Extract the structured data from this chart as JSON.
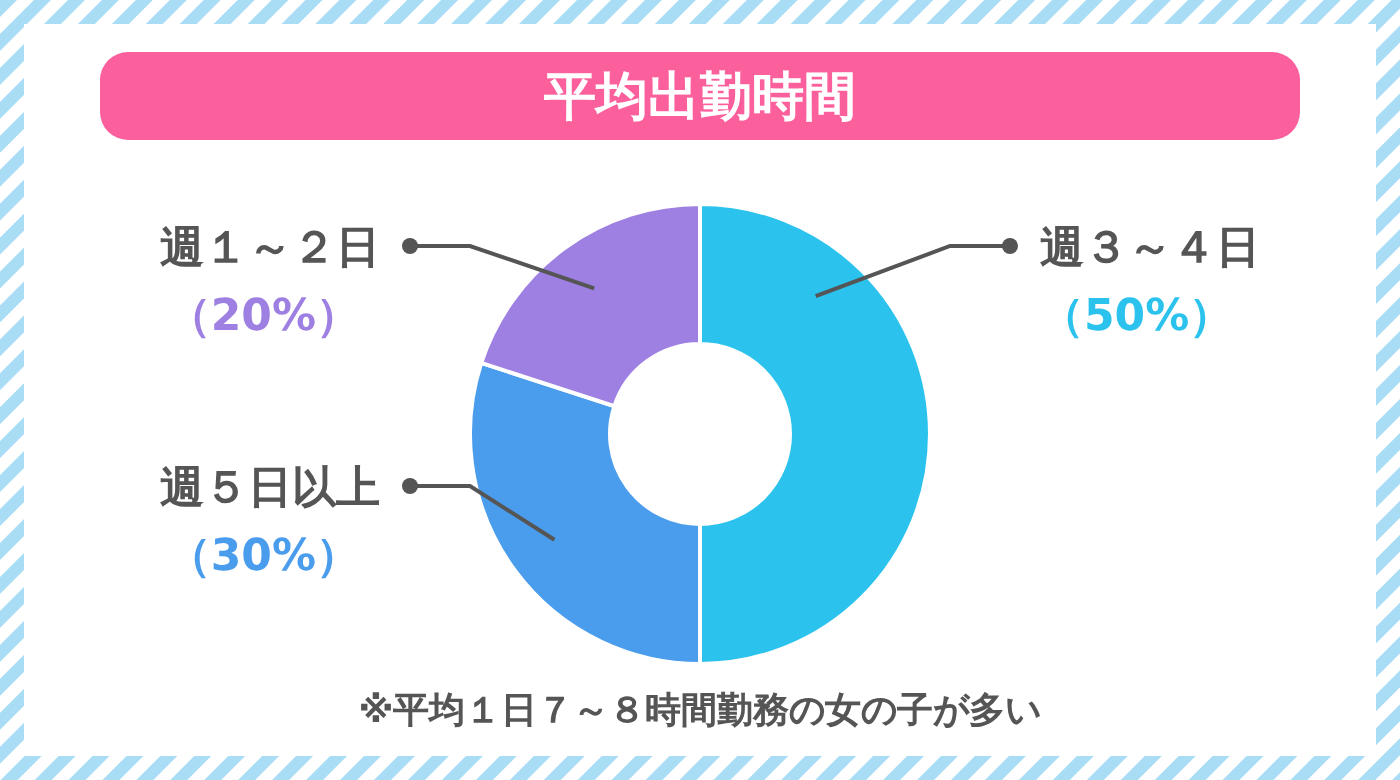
{
  "chart_data": {
    "type": "donut",
    "title": "平均出勤時間",
    "categories": [
      "週３～４日",
      "週５日以上",
      "週１～２日"
    ],
    "values": [
      50,
      30,
      20
    ],
    "value_labels": [
      "（50%）",
      "（30%）",
      "（20%）"
    ],
    "colors": [
      "#2bc3ee",
      "#4a9cec",
      "#9e80e2"
    ],
    "annotations": [
      "※平均１日７～８時間勤務の女の子が多い"
    ]
  }
}
